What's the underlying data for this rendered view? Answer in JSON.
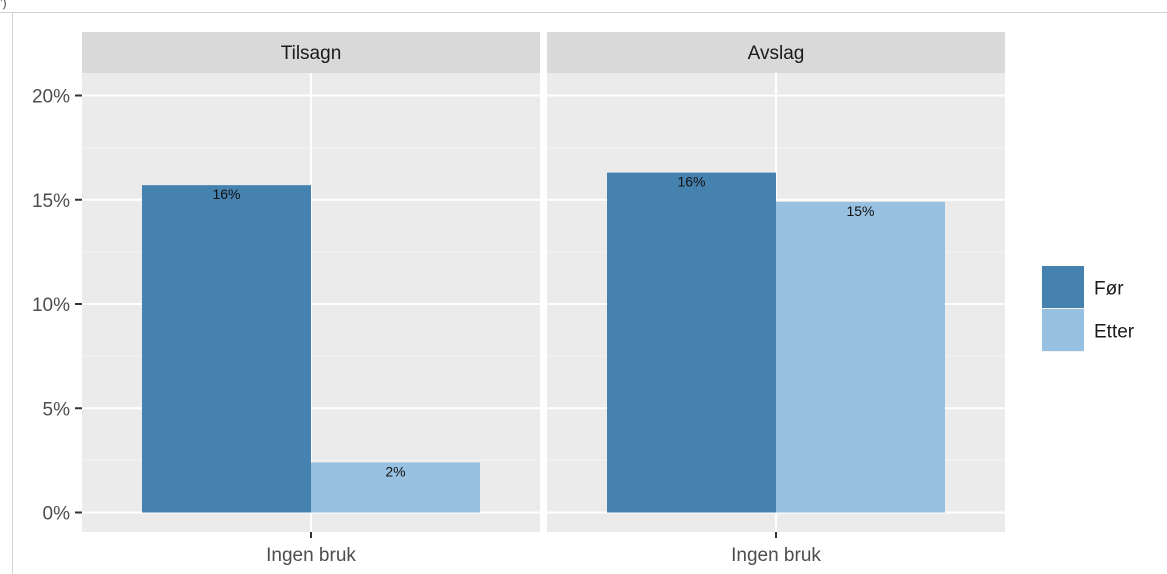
{
  "chart_data": {
    "type": "bar",
    "corner_fragment": "’)",
    "facets": [
      "Tilsagn",
      "Avslag"
    ],
    "categories": [
      "Ingen bruk"
    ],
    "series": [
      {
        "name": "Før",
        "color": "#4682b0"
      },
      {
        "name": "Etter",
        "color": "#98c1e1"
      }
    ],
    "values": {
      "Tilsagn": {
        "Før": 15.7,
        "Etter": 2.4
      },
      "Avslag": {
        "Før": 16.3,
        "Etter": 14.9
      }
    },
    "bar_labels": {
      "Tilsagn": {
        "Før": "16%",
        "Etter": "2%"
      },
      "Avslag": {
        "Før": "16%",
        "Etter": "15%"
      }
    },
    "ylim": [
      0,
      20
    ],
    "yticks": [
      0,
      5,
      10,
      15,
      20
    ],
    "ytick_labels": [
      "0%",
      "5%",
      "10%",
      "15%",
      "20%"
    ],
    "xlabel": "",
    "ylabel": "",
    "grid": true,
    "legend_position": "right"
  }
}
